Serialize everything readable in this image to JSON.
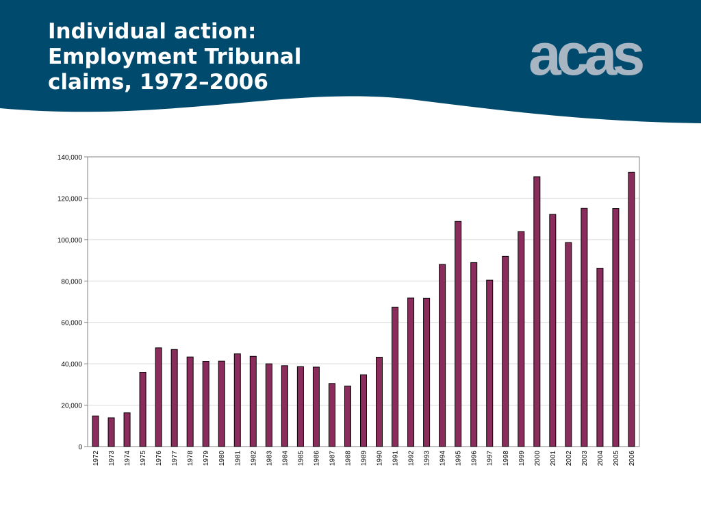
{
  "slide": {
    "title_lines": [
      "Individual action:",
      "Employment Tribunal",
      "claims, 1972–2006"
    ],
    "logo_text": "acas",
    "header_color": "#004a6e",
    "logo_color": "#a8b6c3"
  },
  "chart_data": {
    "type": "bar",
    "title": "",
    "xlabel": "",
    "ylabel": "",
    "ylim": [
      0,
      140000
    ],
    "grid": true,
    "legend": "none",
    "bar_color": "#8b2d5c",
    "y_ticks": [
      0,
      20000,
      40000,
      60000,
      80000,
      100000,
      120000,
      140000
    ],
    "y_tick_labels": [
      "0",
      "20,000",
      "40,000",
      "60,000",
      "80,000",
      "100,000",
      "120,000",
      "140,000"
    ],
    "categories": [
      "1972",
      "1973",
      "1974",
      "1975",
      "1976",
      "1977",
      "1978",
      "1979",
      "1980",
      "1981",
      "1982",
      "1983",
      "1984",
      "1985",
      "1986",
      "1987",
      "1988",
      "1989",
      "1990",
      "1991",
      "1992",
      "1993",
      "1994",
      "1995",
      "1996",
      "1997",
      "1998",
      "1999",
      "2000",
      "2001",
      "2002",
      "2003",
      "2004",
      "2005",
      "2006"
    ],
    "values": [
      14800,
      13900,
      16300,
      35900,
      47700,
      46900,
      43300,
      41200,
      41300,
      44800,
      43600,
      40000,
      39100,
      38600,
      38400,
      30500,
      29200,
      34700,
      43200,
      67400,
      71800,
      71700,
      88000,
      108800,
      88900,
      80400,
      91900,
      103900,
      130400,
      112200,
      98600,
      115100,
      86200,
      115000,
      132600
    ]
  }
}
